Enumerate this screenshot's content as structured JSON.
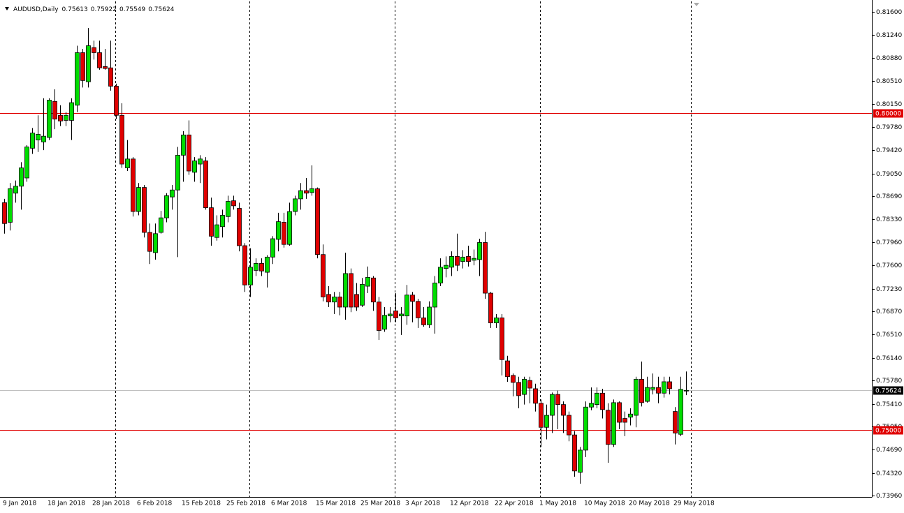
{
  "chart_data": {
    "type": "candlestick",
    "symbol": "AUDUSD,Daily",
    "up_color": "#00dd00",
    "down_color": "#e00000",
    "grid": false,
    "ylim": [
      0.7394,
      0.8177
    ],
    "yticks": [
      {
        "value": 0.816,
        "label": "0.81600"
      },
      {
        "value": 0.8124,
        "label": "0.81240"
      },
      {
        "value": 0.8088,
        "label": "0.80880"
      },
      {
        "value": 0.8051,
        "label": "0.80510"
      },
      {
        "value": 0.8015,
        "label": "0.80150"
      },
      {
        "value": 0.7978,
        "label": "0.79780"
      },
      {
        "value": 0.7942,
        "label": "0.79420"
      },
      {
        "value": 0.7905,
        "label": "0.79050"
      },
      {
        "value": 0.7869,
        "label": "0.78690"
      },
      {
        "value": 0.7833,
        "label": "0.78330"
      },
      {
        "value": 0.7796,
        "label": "0.77960"
      },
      {
        "value": 0.776,
        "label": "0.77600"
      },
      {
        "value": 0.7723,
        "label": "0.77230"
      },
      {
        "value": 0.7687,
        "label": "0.76870"
      },
      {
        "value": 0.7651,
        "label": "0.76510"
      },
      {
        "value": 0.7614,
        "label": "0.76140"
      },
      {
        "value": 0.7578,
        "label": "0.75780"
      },
      {
        "value": 0.7541,
        "label": "0.75410"
      },
      {
        "value": 0.7505,
        "label": "0.75050"
      },
      {
        "value": 0.7469,
        "label": "0.74690"
      },
      {
        "value": 0.7432,
        "label": "0.74320"
      },
      {
        "value": 0.7396,
        "label": "0.73960"
      }
    ],
    "levels": [
      {
        "value": 0.8,
        "label": "0.80000",
        "color": "#e00000"
      },
      {
        "value": 0.75,
        "label": "0.75000",
        "color": "#e00000"
      }
    ],
    "categories": [
      "9 Jan 2018",
      null,
      null,
      null,
      null,
      null,
      null,
      null,
      "18 Jan 2018",
      null,
      null,
      null,
      null,
      null,
      null,
      null,
      "28 Jan 2018",
      null,
      null,
      null,
      null,
      null,
      null,
      null,
      "6 Feb 2018",
      null,
      null,
      null,
      null,
      null,
      null,
      null,
      "15 Feb 2018",
      null,
      null,
      null,
      null,
      null,
      null,
      null,
      "25 Feb 2018",
      null,
      null,
      null,
      null,
      null,
      null,
      null,
      "6 Mar 2018",
      null,
      null,
      null,
      null,
      null,
      null,
      null,
      "15 Mar 2018",
      null,
      null,
      null,
      null,
      null,
      null,
      null,
      "25 Mar 2018",
      null,
      null,
      null,
      null,
      null,
      null,
      null,
      "3 Apr 2018",
      null,
      null,
      null,
      null,
      null,
      null,
      null,
      "12 Apr 2018",
      null,
      null,
      null,
      null,
      null,
      null,
      null,
      "22 Apr 2018",
      null,
      null,
      null,
      null,
      null,
      null,
      null,
      "1 May 2018",
      null,
      null,
      null,
      null,
      null,
      null,
      null,
      "10 May 2018",
      null,
      null,
      null,
      null,
      null,
      null,
      null,
      "20 May 2018",
      null,
      null,
      null,
      null,
      null,
      null,
      null,
      "29 May 2018",
      null,
      null
    ],
    "ohlc": [
      [
        0.7859,
        0.7865,
        0.781,
        0.7826
      ],
      [
        0.7828,
        0.789,
        0.7815,
        0.7881
      ],
      [
        0.7874,
        0.7894,
        0.7859,
        0.7885
      ],
      [
        0.7885,
        0.7923,
        0.7848,
        0.7914
      ],
      [
        0.7898,
        0.795,
        0.7892,
        0.7947
      ],
      [
        0.7945,
        0.7977,
        0.7936,
        0.7969
      ],
      [
        0.7958,
        0.7997,
        0.7939,
        0.7967
      ],
      [
        0.7955,
        0.8024,
        0.7942,
        0.7964
      ],
      [
        0.7962,
        0.8024,
        0.7958,
        0.8021
      ],
      [
        0.8019,
        0.8038,
        0.7975,
        0.7991
      ],
      [
        0.7997,
        0.8013,
        0.798,
        0.7988
      ],
      [
        0.7989,
        0.8002,
        0.798,
        0.7997
      ],
      [
        0.7989,
        0.8024,
        0.7958,
        0.8017
      ],
      [
        0.8013,
        0.8107,
        0.8002,
        0.8096
      ],
      [
        0.8096,
        0.8102,
        0.8041,
        0.8052
      ],
      [
        0.805,
        0.8135,
        0.8041,
        0.8107
      ],
      [
        0.8104,
        0.8115,
        0.8085,
        0.8096
      ],
      [
        0.8096,
        0.8115,
        0.8069,
        0.8072
      ],
      [
        0.8074,
        0.8102,
        0.8069,
        0.8071
      ],
      [
        0.8072,
        0.8115,
        0.8036,
        0.8043
      ],
      [
        0.8043,
        0.8047,
        0.7991,
        0.7997
      ],
      [
        0.7997,
        0.8016,
        0.7914,
        0.792
      ],
      [
        0.7914,
        0.7958,
        0.7909,
        0.7928
      ],
      [
        0.7928,
        0.7931,
        0.7837,
        0.7845
      ],
      [
        0.7845,
        0.789,
        0.7839,
        0.7883
      ],
      [
        0.7883,
        0.7887,
        0.7804,
        0.7812
      ],
      [
        0.7812,
        0.7826,
        0.7762,
        0.7782
      ],
      [
        0.778,
        0.7826,
        0.7769,
        0.781
      ],
      [
        0.7812,
        0.7846,
        0.781,
        0.7835
      ],
      [
        0.7835,
        0.7874,
        0.7828,
        0.787
      ],
      [
        0.7868,
        0.7887,
        0.7848,
        0.7879
      ],
      [
        0.7879,
        0.7947,
        0.7773,
        0.7934
      ],
      [
        0.7934,
        0.7972,
        0.7892,
        0.7966
      ],
      [
        0.7966,
        0.7989,
        0.7903,
        0.7909
      ],
      [
        0.7907,
        0.7931,
        0.7892,
        0.7925
      ],
      [
        0.792,
        0.7934,
        0.789,
        0.7928
      ],
      [
        0.7925,
        0.7931,
        0.7848,
        0.7851
      ],
      [
        0.7851,
        0.7867,
        0.7791,
        0.7806
      ],
      [
        0.7804,
        0.7839,
        0.7799,
        0.7824
      ],
      [
        0.7821,
        0.7848,
        0.7804,
        0.7839
      ],
      [
        0.7837,
        0.787,
        0.7828,
        0.7861
      ],
      [
        0.7862,
        0.787,
        0.7848,
        0.7854
      ],
      [
        0.785,
        0.7859,
        0.7782,
        0.7791
      ],
      [
        0.7791,
        0.7795,
        0.7718,
        0.7729
      ],
      [
        0.7729,
        0.7787,
        0.771,
        0.7757
      ],
      [
        0.7752,
        0.7771,
        0.7743,
        0.7763
      ],
      [
        0.7763,
        0.7771,
        0.7743,
        0.7751
      ],
      [
        0.7749,
        0.7776,
        0.7725,
        0.7773
      ],
      [
        0.7773,
        0.7806,
        0.7762,
        0.7802
      ],
      [
        0.7801,
        0.7843,
        0.7782,
        0.7829
      ],
      [
        0.7828,
        0.7843,
        0.7788,
        0.7793
      ],
      [
        0.7793,
        0.7859,
        0.7791,
        0.7845
      ],
      [
        0.7845,
        0.787,
        0.7839,
        0.7865
      ],
      [
        0.7865,
        0.789,
        0.7848,
        0.7878
      ],
      [
        0.7878,
        0.7898,
        0.7865,
        0.7874
      ],
      [
        0.7875,
        0.7918,
        0.787,
        0.7881
      ],
      [
        0.7881,
        0.7883,
        0.7771,
        0.7777
      ],
      [
        0.7777,
        0.7793,
        0.7703,
        0.771
      ],
      [
        0.7714,
        0.7727,
        0.7694,
        0.7702
      ],
      [
        0.7702,
        0.7718,
        0.7683,
        0.771
      ],
      [
        0.771,
        0.7718,
        0.7681,
        0.7694
      ],
      [
        0.7694,
        0.778,
        0.7674,
        0.7747
      ],
      [
        0.7747,
        0.7755,
        0.7686,
        0.7694
      ],
      [
        0.7714,
        0.7732,
        0.7688,
        0.7694
      ],
      [
        0.7697,
        0.774,
        0.7694,
        0.773
      ],
      [
        0.7727,
        0.7758,
        0.7716,
        0.7741
      ],
      [
        0.774,
        0.7743,
        0.7688,
        0.7702
      ],
      [
        0.7702,
        0.771,
        0.7642,
        0.7657
      ],
      [
        0.7659,
        0.7694,
        0.7655,
        0.7681
      ],
      [
        0.768,
        0.7694,
        0.767,
        0.7683
      ],
      [
        0.7688,
        0.7716,
        0.767,
        0.7677
      ],
      [
        0.768,
        0.7694,
        0.765,
        0.7683
      ],
      [
        0.768,
        0.7729,
        0.7666,
        0.7713
      ],
      [
        0.7713,
        0.7718,
        0.767,
        0.7703
      ],
      [
        0.7703,
        0.7707,
        0.7661,
        0.7677
      ],
      [
        0.7677,
        0.7694,
        0.7663,
        0.7666
      ],
      [
        0.7666,
        0.7703,
        0.7661,
        0.7694
      ],
      [
        0.7694,
        0.7743,
        0.7652,
        0.7732
      ],
      [
        0.7732,
        0.7771,
        0.7727,
        0.7757
      ],
      [
        0.7755,
        0.7774,
        0.7741,
        0.776
      ],
      [
        0.7757,
        0.7782,
        0.7743,
        0.7774
      ],
      [
        0.7774,
        0.781,
        0.7751,
        0.776
      ],
      [
        0.7766,
        0.7784,
        0.7755,
        0.7773
      ],
      [
        0.7774,
        0.7791,
        0.7758,
        0.7766
      ],
      [
        0.7768,
        0.7785,
        0.776,
        0.7771
      ],
      [
        0.7769,
        0.7802,
        0.7743,
        0.7796
      ],
      [
        0.7796,
        0.7813,
        0.7707,
        0.7716
      ],
      [
        0.7716,
        0.7718,
        0.7661,
        0.7669
      ],
      [
        0.7669,
        0.7683,
        0.7661,
        0.7677
      ],
      [
        0.7677,
        0.7683,
        0.7586,
        0.7611
      ],
      [
        0.7609,
        0.7617,
        0.7576,
        0.7584
      ],
      [
        0.7586,
        0.7589,
        0.7553,
        0.7575
      ],
      [
        0.7575,
        0.7584,
        0.7534,
        0.7554
      ],
      [
        0.7556,
        0.7584,
        0.754,
        0.758
      ],
      [
        0.7578,
        0.7584,
        0.7542,
        0.7566
      ],
      [
        0.7565,
        0.7573,
        0.7529,
        0.7542
      ],
      [
        0.7542,
        0.7548,
        0.7473,
        0.7504
      ],
      [
        0.7504,
        0.754,
        0.7485,
        0.7523
      ],
      [
        0.7523,
        0.7559,
        0.7495,
        0.7556
      ],
      [
        0.7556,
        0.7562,
        0.7501,
        0.754
      ],
      [
        0.754,
        0.7545,
        0.7495,
        0.7523
      ],
      [
        0.7523,
        0.7529,
        0.7482,
        0.7492
      ],
      [
        0.7492,
        0.7498,
        0.7426,
        0.7435
      ],
      [
        0.7433,
        0.7473,
        0.7415,
        0.7468
      ],
      [
        0.7468,
        0.7545,
        0.7457,
        0.7536
      ],
      [
        0.7536,
        0.7567,
        0.7531,
        0.7542
      ],
      [
        0.754,
        0.7567,
        0.7534,
        0.7558
      ],
      [
        0.7558,
        0.7565,
        0.7518,
        0.7532
      ],
      [
        0.7531,
        0.7542,
        0.7448,
        0.7477
      ],
      [
        0.7477,
        0.7548,
        0.7473,
        0.7543
      ],
      [
        0.7543,
        0.7545,
        0.7501,
        0.7512
      ],
      [
        0.7518,
        0.7529,
        0.749,
        0.7512
      ],
      [
        0.752,
        0.7534,
        0.7507,
        0.7525
      ],
      [
        0.7523,
        0.7584,
        0.7504,
        0.758
      ],
      [
        0.758,
        0.7608,
        0.7537,
        0.7543
      ],
      [
        0.7545,
        0.7584,
        0.7543,
        0.7567
      ],
      [
        0.7564,
        0.7589,
        0.7556,
        0.7567
      ],
      [
        0.7567,
        0.7584,
        0.7542,
        0.7558
      ],
      [
        0.7558,
        0.7584,
        0.7551,
        0.7576
      ],
      [
        0.7576,
        0.7584,
        0.7556,
        0.7565
      ],
      [
        0.7529,
        0.7536,
        0.7477,
        0.7495
      ],
      [
        0.7493,
        0.7584,
        0.749,
        0.7564
      ],
      [
        0.75613,
        0.75922,
        0.75549,
        0.75624
      ]
    ]
  }
}
